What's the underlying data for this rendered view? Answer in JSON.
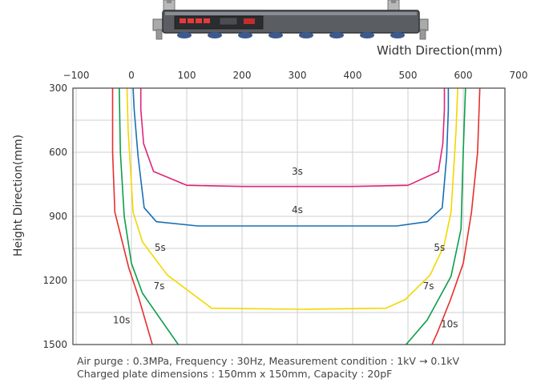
{
  "chart_data": {
    "type": "line",
    "xlabel": "Width Direction(mm)",
    "ylabel": "Height Direction(mm)",
    "x_ticks": [
      -100,
      0,
      100,
      200,
      300,
      400,
      500,
      600,
      700
    ],
    "y_ticks": [
      300,
      600,
      900,
      1200,
      1500
    ],
    "xlim": [
      -100,
      700
    ],
    "ylim": [
      300,
      1500
    ],
    "y_inverted": true,
    "grid": true,
    "notes": [
      "Air purge : 0.3MPa, Frequency : 30Hz, Measurement condition : 1kV → 0.1kV",
      "Charged plate dimensions : 150mm x 150mm, Capacity : 20pF"
    ],
    "series": [
      {
        "name": "3s",
        "color": "#e0247a",
        "points": [
          [
            17,
            300
          ],
          [
            17,
            400
          ],
          [
            22,
            560
          ],
          [
            40,
            690
          ],
          [
            100,
            755
          ],
          [
            200,
            760
          ],
          [
            300,
            760
          ],
          [
            400,
            760
          ],
          [
            500,
            755
          ],
          [
            555,
            690
          ],
          [
            563,
            560
          ],
          [
            566,
            400
          ],
          [
            566,
            300
          ]
        ],
        "labels": [
          {
            "text": "3s",
            "x": 300,
            "y": 705
          }
        ]
      },
      {
        "name": "4s",
        "color": "#1670b7",
        "points": [
          [
            3,
            300
          ],
          [
            5,
            400
          ],
          [
            12,
            620
          ],
          [
            23,
            860
          ],
          [
            45,
            925
          ],
          [
            120,
            945
          ],
          [
            300,
            945
          ],
          [
            480,
            945
          ],
          [
            535,
            925
          ],
          [
            562,
            860
          ],
          [
            570,
            620
          ],
          [
            573,
            400
          ],
          [
            573,
            300
          ]
        ],
        "labels": [
          {
            "text": "4s",
            "x": 300,
            "y": 885
          }
        ]
      },
      {
        "name": "5s",
        "color": "#f2d700",
        "points": [
          [
            -8,
            300
          ],
          [
            -6,
            500
          ],
          [
            3,
            880
          ],
          [
            20,
            1020
          ],
          [
            65,
            1175
          ],
          [
            145,
            1330
          ],
          [
            310,
            1335
          ],
          [
            460,
            1330
          ],
          [
            495,
            1290
          ],
          [
            540,
            1175
          ],
          [
            565,
            1040
          ],
          [
            578,
            880
          ],
          [
            587,
            500
          ],
          [
            590,
            300
          ]
        ],
        "labels": [
          {
            "text": "5s",
            "x": 52,
            "y": 1062
          },
          {
            "text": "5s",
            "x": 557,
            "y": 1062
          }
        ]
      },
      {
        "name": "7s",
        "color": "#0a9e4a",
        "points": [
          [
            -22,
            300
          ],
          [
            -20,
            600
          ],
          [
            -13,
            900
          ],
          [
            0,
            1120
          ],
          [
            20,
            1260
          ],
          [
            90,
            1520
          ],
          [
            490,
            1520
          ],
          [
            535,
            1385
          ],
          [
            578,
            1180
          ],
          [
            596,
            960
          ],
          [
            600,
            600
          ],
          [
            604,
            300
          ]
        ],
        "labels": [
          {
            "text": "7s",
            "x": 50,
            "y": 1242
          },
          {
            "text": "7s",
            "x": 537,
            "y": 1242
          }
        ]
      },
      {
        "name": "10s",
        "color": "#e5302d",
        "points": [
          [
            -34,
            300
          ],
          [
            -34,
            600
          ],
          [
            -30,
            880
          ],
          [
            -5,
            1140
          ],
          [
            13,
            1280
          ],
          [
            40,
            1520
          ],
          [
            540,
            1520
          ],
          [
            553,
            1445
          ],
          [
            577,
            1290
          ],
          [
            600,
            1120
          ],
          [
            615,
            880
          ],
          [
            626,
            600
          ],
          [
            630,
            300
          ]
        ],
        "labels": [
          {
            "text": "10s",
            "x": -18,
            "y": 1400
          },
          {
            "text": "10s",
            "x": 575,
            "y": 1420
          }
        ]
      }
    ]
  }
}
